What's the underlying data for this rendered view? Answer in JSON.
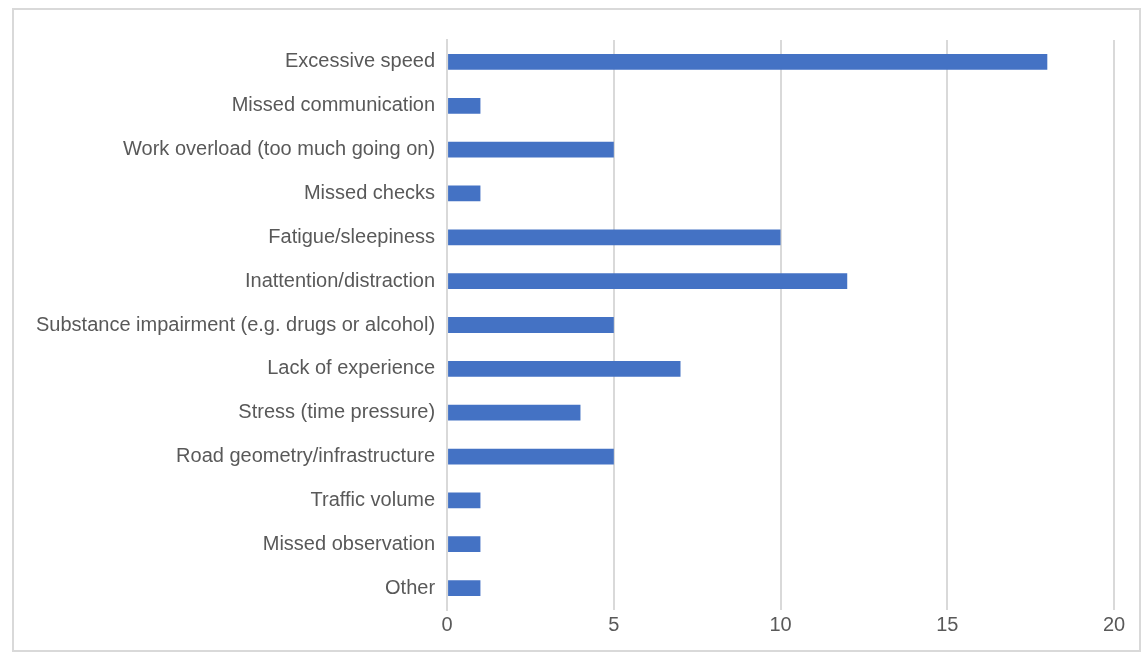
{
  "chart_data": {
    "type": "bar",
    "orientation": "horizontal",
    "categories": [
      "Excessive speed",
      "Missed communication",
      "Work overload (too much going on)",
      "Missed checks",
      "Fatigue/sleepiness",
      "Inattention/distraction",
      "Substance impairment (e.g. drugs or alcohol)",
      "Lack of experience",
      "Stress (time pressure)",
      "Road geometry/infrastructure",
      "Traffic volume",
      "Missed observation",
      "Other"
    ],
    "values": [
      18,
      1,
      5,
      1,
      10,
      12,
      5,
      7,
      4,
      5,
      1,
      1,
      1
    ],
    "color": "#4472c4",
    "xlim": [
      0,
      20
    ],
    "xticks": [
      0,
      5,
      10,
      15,
      20
    ],
    "grid": "x",
    "legend": false
  }
}
